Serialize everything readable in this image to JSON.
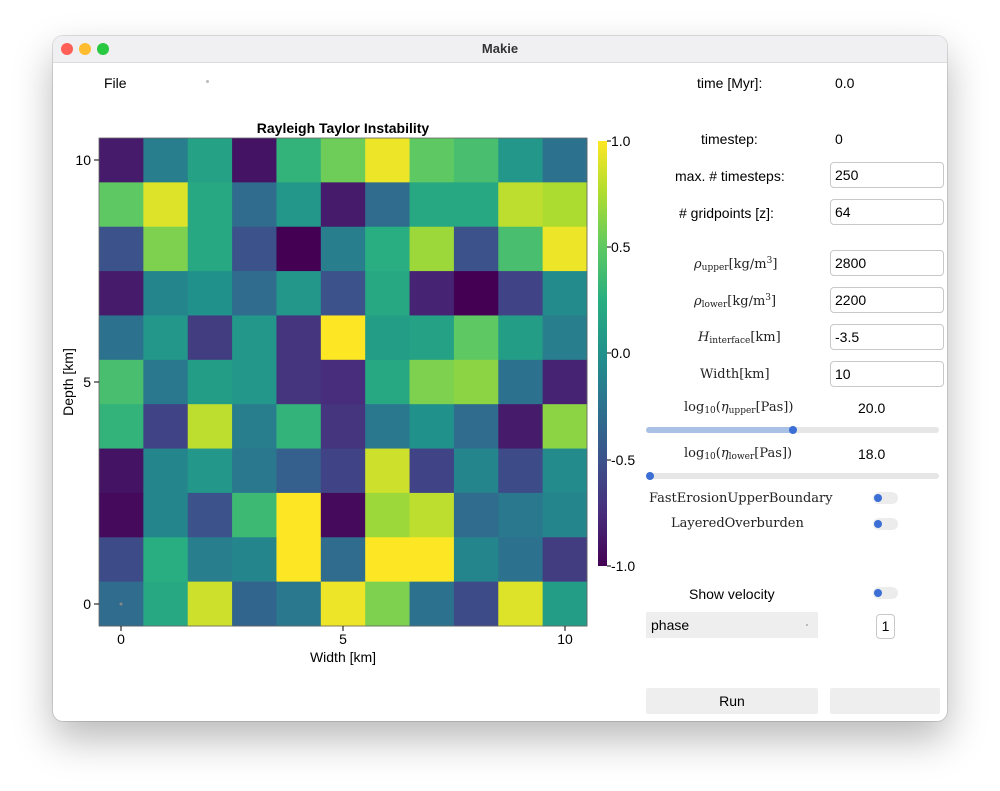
{
  "window": {
    "title": "Makie"
  },
  "menu": {
    "file_label": "File"
  },
  "plot": {
    "title": "Rayleigh Taylor Instability",
    "xlabel": "Width [km]",
    "ylabel": "Depth [km]",
    "xticks": [
      "0",
      "5",
      "10"
    ],
    "yticks": [
      "0",
      "5",
      "10"
    ],
    "colorbar_ticks": [
      "1.0",
      "0.5",
      "0.0",
      "-0.5",
      "-1.0"
    ]
  },
  "chart_data": {
    "type": "heatmap",
    "title": "Rayleigh Taylor Instability",
    "xlabel": "Width [km]",
    "ylabel": "Depth [km]",
    "xlim": [
      -0.5,
      10.5
    ],
    "ylim": [
      -0.5,
      10.5
    ],
    "colormap": "viridis",
    "clim": [
      -1.0,
      1.0
    ],
    "x": [
      0,
      1,
      2,
      3,
      4,
      5,
      6,
      7,
      8,
      9,
      10
    ],
    "y": [
      10,
      9,
      8,
      7,
      6,
      5,
      4,
      3,
      2,
      1,
      0
    ],
    "values": [
      [
        -0.85,
        -0.15,
        0.15,
        -0.9,
        0.3,
        0.55,
        0.95,
        0.5,
        0.4,
        0.05,
        -0.25
      ],
      [
        0.5,
        0.9,
        0.2,
        -0.3,
        0.05,
        -0.85,
        -0.3,
        0.2,
        0.2,
        0.8,
        0.75
      ],
      [
        -0.5,
        0.6,
        0.2,
        -0.5,
        -1.0,
        -0.15,
        0.25,
        0.7,
        -0.5,
        0.4,
        0.95
      ],
      [
        -0.85,
        -0.1,
        0.0,
        -0.3,
        0.05,
        -0.5,
        0.2,
        -0.8,
        -1.0,
        -0.6,
        -0.05
      ],
      [
        -0.25,
        0.05,
        -0.65,
        0.05,
        -0.7,
        1.0,
        0.1,
        0.15,
        0.5,
        0.1,
        -0.15
      ],
      [
        0.4,
        -0.2,
        0.1,
        0.05,
        -0.7,
        -0.75,
        0.2,
        0.6,
        0.65,
        -0.25,
        -0.8
      ],
      [
        0.3,
        -0.6,
        0.8,
        -0.15,
        0.3,
        -0.7,
        -0.2,
        0.0,
        -0.3,
        -0.85,
        0.65
      ],
      [
        -0.9,
        -0.1,
        0.05,
        -0.2,
        -0.4,
        -0.6,
        0.85,
        -0.6,
        -0.1,
        -0.55,
        -0.05
      ],
      [
        -0.95,
        -0.1,
        -0.5,
        0.35,
        1.0,
        -0.95,
        0.7,
        0.8,
        -0.3,
        -0.2,
        -0.1
      ],
      [
        -0.55,
        0.25,
        -0.15,
        -0.1,
        1.0,
        -0.3,
        1.0,
        1.0,
        -0.1,
        -0.25,
        -0.65
      ],
      [
        -0.3,
        0.2,
        0.85,
        -0.35,
        -0.2,
        0.95,
        0.6,
        -0.25,
        -0.55,
        0.9,
        0.1
      ]
    ],
    "grid": false
  },
  "controls": {
    "time_label": "time [Myr]:",
    "time_value": "0.0",
    "timestep_label": "timestep:",
    "timestep_value": "0",
    "max_timesteps_label": "max. # timesteps:",
    "max_timesteps_value": "250",
    "gridpoints_label": "# gridpoints [z]:",
    "gridpoints_value": "64",
    "rho_upper": {
      "sym": "ρ",
      "sub": "upper",
      "unit": "[kg/m",
      "sup": "3",
      "close": "]",
      "value": "2800"
    },
    "rho_lower": {
      "sym": "ρ",
      "sub": "lower",
      "unit": "[kg/m",
      "sup": "3",
      "close": "]",
      "value": "2200"
    },
    "h_interface": {
      "sym": "H",
      "sub": "interface",
      "unit": "[km]",
      "value": "-3.5"
    },
    "width": {
      "label": "Width[km]",
      "value": "10"
    },
    "eta_upper": {
      "pre": "log",
      "pre_sub": "10",
      "open": "(",
      "sym": "η",
      "sub": "upper",
      "unit": "[Pas])",
      "value": "20.0",
      "fraction": 0.5
    },
    "eta_lower": {
      "pre": "log",
      "pre_sub": "10",
      "open": "(",
      "sym": "η",
      "sub": "lower",
      "unit": "[Pas])",
      "value": "18.0",
      "fraction": 0.0
    },
    "fast_erosion_label": "FastErosionUpperBoundary",
    "layered_overburden_label": "LayeredOverburden",
    "show_velocity_label": "Show velocity",
    "phase_select": "phase",
    "phase_index": "1",
    "run_label": "Run"
  },
  "colors": {
    "slider_accent": "#3b6fd6",
    "button_bg": "#eeeeee"
  }
}
